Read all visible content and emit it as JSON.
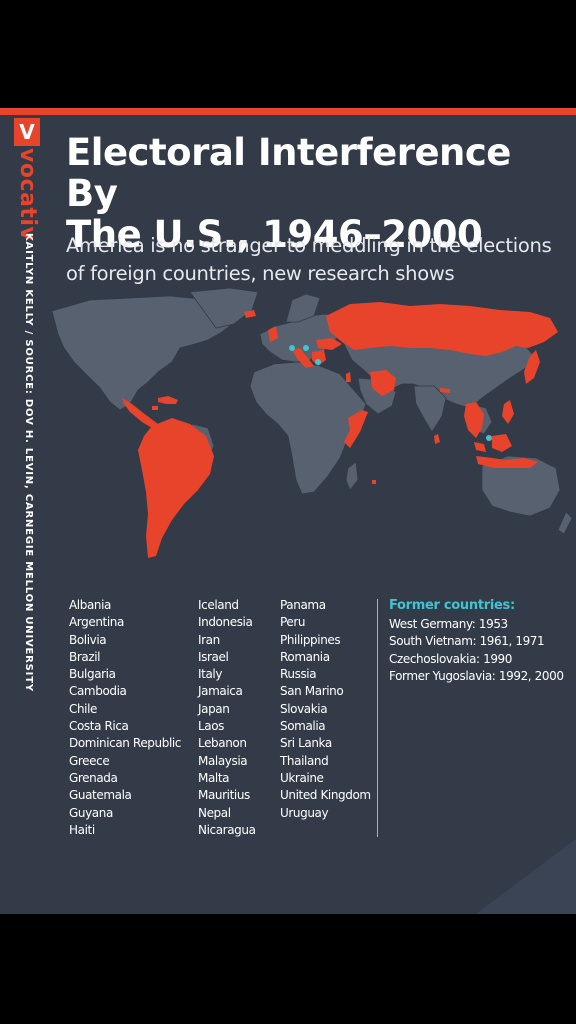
{
  "brand": {
    "logo_letter": "V",
    "name": "vocativ",
    "credit": "KAITLYN KELLY / SOURCE: DOV H. LEVIN, CARNEGIE MELLON UNIVERSITY"
  },
  "header": {
    "title_line1": "Electoral Interference By",
    "title_line2": "The U.S., 1946–2000",
    "subtitle_line1": "America is no stranger to meddling in the elections",
    "subtitle_line2": "of foreign countries, new research shows"
  },
  "map": {
    "colors": {
      "background": "#333b49",
      "land": "#576170",
      "highlight": "#e8432b",
      "former_country_marker": "#3fc4d0"
    },
    "highlighted_countries": [
      "Albania",
      "Argentina",
      "Bolivia",
      "Brazil",
      "Bulgaria",
      "Cambodia",
      "Chile",
      "Costa Rica",
      "Dominican Republic",
      "Greece",
      "Grenada",
      "Guatemala",
      "Guyana",
      "Haiti",
      "Iceland",
      "Indonesia",
      "Iran",
      "Israel",
      "Italy",
      "Jamaica",
      "Japan",
      "Laos",
      "Lebanon",
      "Malaysia",
      "Malta",
      "Mauritius",
      "Nepal",
      "Nicaragua",
      "Panama",
      "Peru",
      "Philippines",
      "Romania",
      "Russia",
      "San Marino",
      "Slovakia",
      "Somalia",
      "Sri Lanka",
      "Thailand",
      "Ukraine",
      "United Kingdom",
      "Uruguay"
    ],
    "former_country_markers": [
      "West Germany",
      "Czechoslovakia",
      "Former Yugoslavia",
      "South Vietnam"
    ]
  },
  "countries": {
    "column1": [
      "Albania",
      "Argentina",
      "Bolivia",
      "Brazil",
      "Bulgaria",
      "Cambodia",
      "Chile",
      "Costa Rica",
      "Dominican Republic",
      "Greece",
      "Grenada",
      "Guatemala",
      "Guyana",
      "Haiti"
    ],
    "column2": [
      "Iceland",
      "Indonesia",
      "Iran",
      "Israel",
      "Italy",
      "Jamaica",
      "Japan",
      "Laos",
      "Lebanon",
      "Malaysia",
      "Malta",
      "Mauritius",
      "Nepal",
      "Nicaragua"
    ],
    "column3": [
      "Panama",
      "Peru",
      "Philippines",
      "Romania",
      "Russia",
      "San Marino",
      "Slovakia",
      "Somalia",
      "Sri Lanka",
      "Thailand",
      "Ukraine",
      "United Kingdom",
      "Uruguay"
    ]
  },
  "former": {
    "title": "Former countries:",
    "items": [
      "West Germany: 1953",
      "South Vietnam: 1961, 1971",
      "Czechoslovakia: 1990",
      "Former Yugoslavia: 1992, 2000"
    ]
  }
}
